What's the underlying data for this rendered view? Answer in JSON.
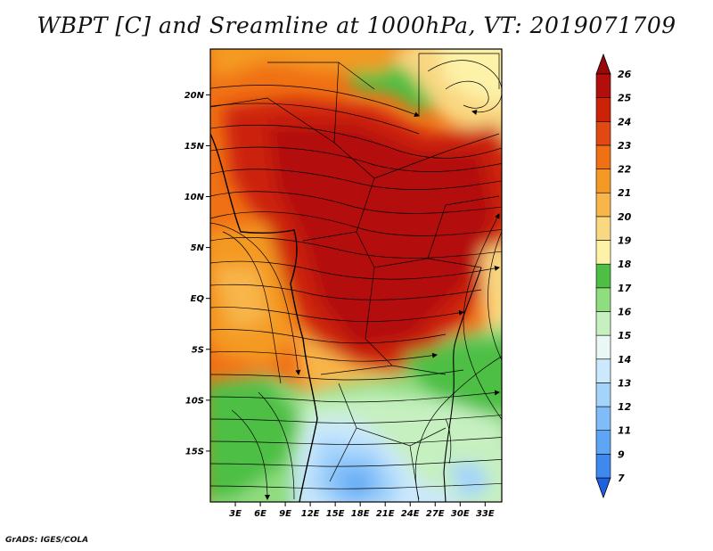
{
  "title": "WBPT [C] and Sreamline at 1000hPa, VT: 2019071709",
  "credit": "GrADS: IGES/COLA",
  "map": {
    "variable": "WBPT",
    "units": "C",
    "level_hPa": 1000,
    "valid_time": "2019071709",
    "lat_labels": [
      "20N",
      "15N",
      "10N",
      "5N",
      "EQ",
      "5S",
      "10S",
      "15S"
    ],
    "lat_values": [
      20,
      15,
      10,
      5,
      0,
      -5,
      -10,
      -15
    ],
    "lon_labels": [
      "3E",
      "6E",
      "9E",
      "12E",
      "15E",
      "18E",
      "21E",
      "24E",
      "27E",
      "30E",
      "33E"
    ],
    "lon_values": [
      3,
      6,
      9,
      12,
      15,
      18,
      21,
      24,
      27,
      30,
      33
    ],
    "lon_range": [
      0,
      35
    ],
    "lat_range": [
      -20,
      24.5
    ]
  },
  "colorbar": {
    "levels": [
      "7",
      "9",
      "11",
      "12",
      "13",
      "14",
      "15",
      "16",
      "17",
      "18",
      "19",
      "20",
      "21",
      "22",
      "23",
      "24",
      "25",
      "26"
    ],
    "colors": [
      "#1f60e0",
      "#3f88ee",
      "#5ea6f5",
      "#80bdf8",
      "#a5d4fb",
      "#cbe8fd",
      "#eaf8f5",
      "#c6f0c0",
      "#8fdd7f",
      "#4dbf45",
      "#fdf2a8",
      "#fad781",
      "#f8b54a",
      "#f49a24",
      "#f07014",
      "#e24812",
      "#cc2208",
      "#b30f0a",
      "#98090a"
    ]
  }
}
